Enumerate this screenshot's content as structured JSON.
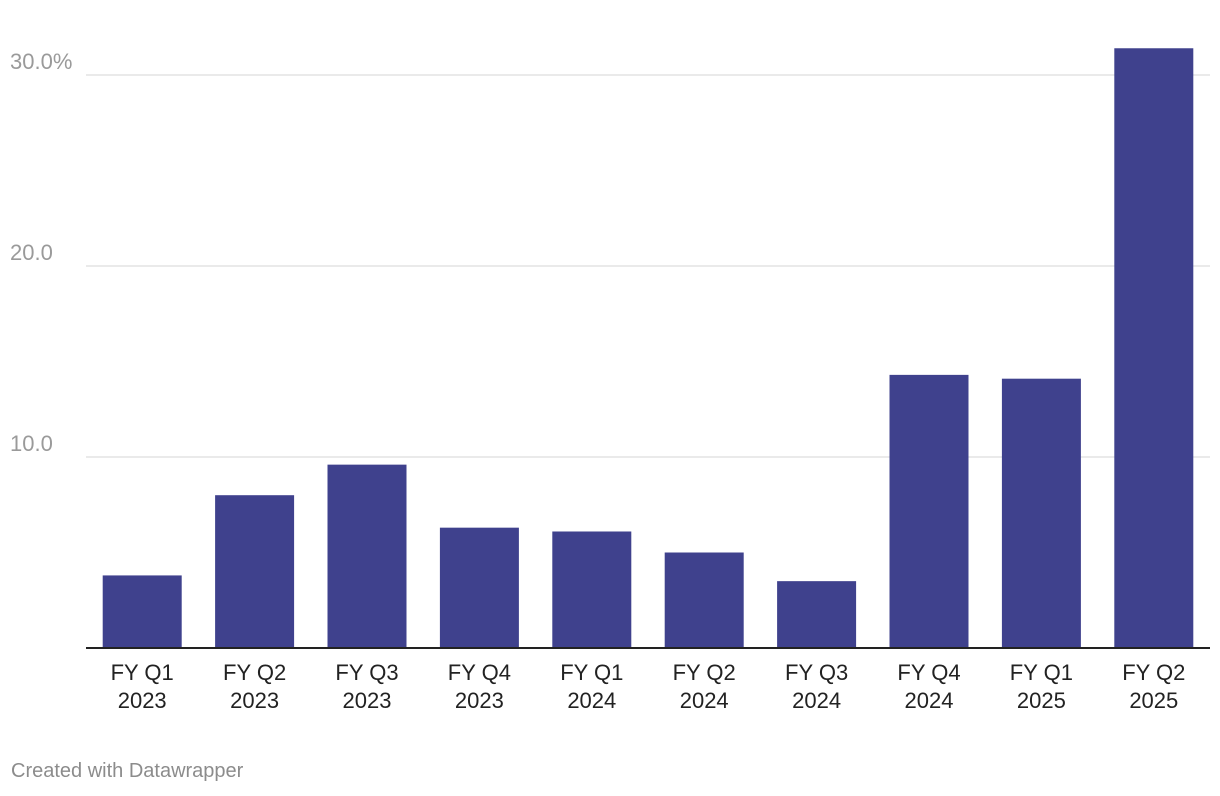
{
  "chart_data": {
    "type": "bar",
    "categories": [
      [
        "FY Q1",
        "2023"
      ],
      [
        "FY Q2",
        "2023"
      ],
      [
        "FY Q3",
        "2023"
      ],
      [
        "FY Q4",
        "2023"
      ],
      [
        "FY Q1",
        "2024"
      ],
      [
        "FY Q2",
        "2024"
      ],
      [
        "FY Q3",
        "2024"
      ],
      [
        "FY Q4",
        "2024"
      ],
      [
        "FY Q1",
        "2025"
      ],
      [
        "FY Q2",
        "2025"
      ]
    ],
    "values": [
      3.8,
      8.0,
      9.6,
      6.3,
      6.1,
      5.0,
      3.5,
      14.3,
      14.1,
      31.4
    ],
    "y_ticks": [
      {
        "value": 30,
        "label": "30.0%"
      },
      {
        "value": 20,
        "label": "20.0"
      },
      {
        "value": 10,
        "label": "10.0"
      }
    ],
    "ylim": [
      0,
      31.4
    ],
    "grid": true,
    "bar_color": "#3f418d",
    "title": "",
    "xlabel": "",
    "ylabel": ""
  },
  "footer": {
    "credit": "Created with Datawrapper"
  }
}
